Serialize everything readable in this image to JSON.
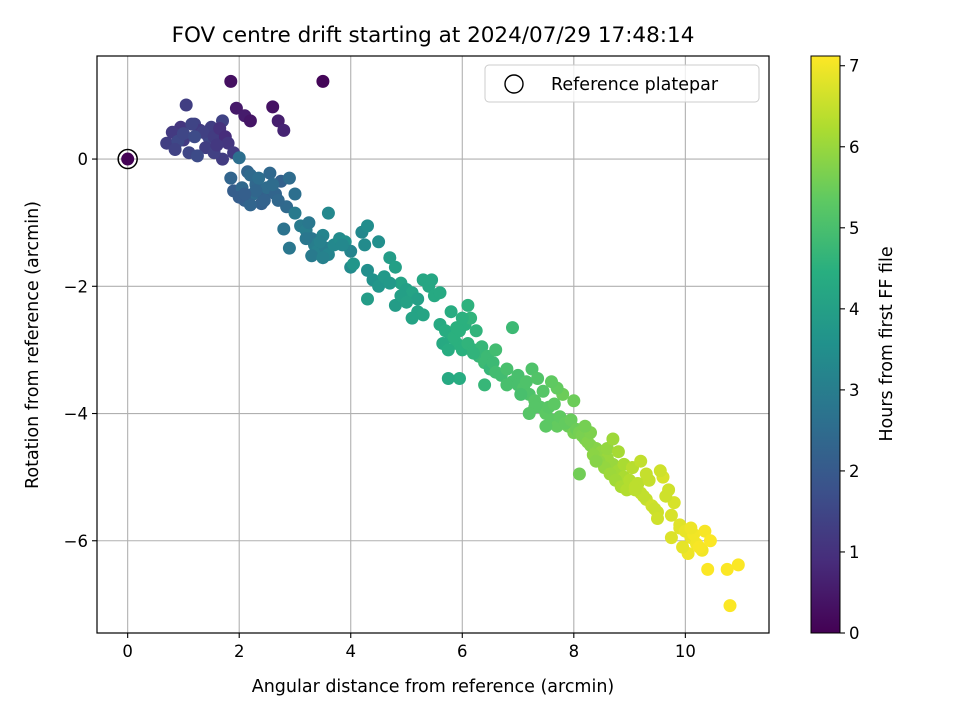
{
  "chart_data": {
    "type": "scatter",
    "title": "FOV centre drift starting at 2024/07/29 17:48:14",
    "xlabel": "Angular distance from reference (arcmin)",
    "ylabel": "Rotation from reference (arcmin)",
    "xlim": [
      -0.55,
      11.5
    ],
    "ylim": [
      -7.45,
      1.62
    ],
    "xticks": [
      0,
      2,
      4,
      6,
      8,
      10
    ],
    "yticks": [
      0,
      -2,
      -4,
      -6
    ],
    "grid": true,
    "legend": {
      "position": "top-right",
      "entries": [
        "Reference platepar"
      ]
    },
    "reference_point": {
      "x": 0,
      "y": 0,
      "hours": 0.05
    },
    "colorbar": {
      "label": "Hours from first FF file",
      "min": 0,
      "max": 7.12,
      "ticks": [
        0,
        1,
        2,
        3,
        4,
        5,
        6,
        7
      ],
      "colormap": "viridis"
    },
    "series": [
      {
        "x": [
          1.85,
          3.5,
          2.6,
          1.95,
          2.1,
          2.2,
          2.7,
          2.8,
          0.7,
          1.0,
          0.95,
          1.05,
          1.2,
          1.3,
          1.45,
          1.6,
          1.4,
          1.5,
          1.7,
          0.8,
          1.1,
          1.25,
          1.15,
          1.35,
          1.55,
          0.9,
          1.65,
          1.75,
          1.8,
          1.9,
          1.7,
          1.55,
          1.6,
          1.0,
          0.85,
          1.2,
          2.0,
          2.15,
          2.3,
          2.25,
          2.45,
          2.6,
          2.1,
          1.9,
          1.85,
          2.05,
          2.2,
          2.35,
          2.5,
          2.65,
          2.75,
          2.4,
          2.2,
          2.0,
          2.55,
          2.3,
          2.45,
          2.1,
          2.9,
          3.0,
          2.85,
          2.6,
          2.7,
          3.1,
          3.2,
          3.3,
          3.35,
          3.4,
          3.5,
          3.55,
          3.3,
          3.25,
          3.45,
          3.6,
          3.7,
          3.5,
          3.2,
          2.8,
          2.9,
          3.0,
          3.6,
          3.8,
          3.9,
          4.0,
          4.2,
          4.3,
          4.25,
          4.5,
          3.85,
          4.0,
          4.3,
          4.4,
          4.5,
          4.6,
          4.7,
          4.8,
          4.9,
          5.0,
          5.1,
          5.2,
          5.3,
          4.8,
          4.9,
          5.0,
          5.2,
          5.3,
          5.4,
          5.5,
          5.6,
          4.7,
          5.45,
          5.1,
          4.3,
          4.05,
          5.6,
          5.7,
          5.8,
          5.9,
          6.0,
          6.1,
          6.2,
          6.3,
          6.4,
          6.5,
          5.65,
          5.75,
          5.85,
          5.95,
          6.05,
          6.15,
          6.25,
          6.35,
          6.45,
          6.55,
          6.6,
          6.7,
          6.8,
          6.9,
          7.0,
          5.8,
          5.9,
          6.0,
          6.6,
          6.8,
          5.95,
          6.2,
          6.4,
          5.75,
          6.1,
          7.0,
          7.1,
          7.2,
          7.3,
          7.4,
          7.5,
          7.6,
          7.7,
          7.8,
          7.9,
          8.0,
          7.05,
          7.15,
          7.25,
          7.35,
          7.45,
          7.55,
          7.65,
          7.75,
          7.85,
          7.95,
          8.05,
          7.3,
          7.5,
          7.7,
          6.9,
          7.6,
          8.0,
          7.2,
          8.1,
          8.2,
          8.3,
          8.4,
          8.5,
          8.6,
          8.7,
          8.8,
          8.9,
          9.0,
          8.15,
          8.25,
          8.35,
          8.45,
          8.55,
          8.65,
          8.75,
          8.85,
          8.95,
          9.05,
          8.3,
          8.6,
          8.9,
          8.7,
          8.2,
          8.8,
          8.4,
          8.1,
          9.0,
          9.1,
          9.2,
          9.3,
          9.4,
          9.5,
          9.6,
          9.7,
          9.8,
          9.05,
          9.15,
          9.25,
          9.35,
          9.45,
          9.55,
          9.65,
          9.75,
          9.1,
          9.2,
          9.3,
          9.5,
          9.9,
          9.9,
          10.0,
          10.1,
          10.2,
          10.3,
          10.05,
          10.15,
          10.25,
          10.35,
          9.95,
          10.1,
          10.45,
          10.4,
          10.75,
          10.95,
          10.8,
          9.75
        ],
        "y": [
          1.22,
          1.22,
          0.82,
          0.8,
          0.68,
          0.6,
          0.6,
          0.45,
          0.25,
          0.3,
          0.5,
          0.85,
          0.55,
          0.45,
          0.35,
          0.25,
          0.18,
          0.5,
          0.6,
          0.42,
          0.1,
          0.05,
          0.55,
          0.42,
          0.35,
          0.28,
          0.48,
          0.35,
          0.25,
          0.1,
          0.0,
          0.1,
          0.22,
          0.4,
          0.15,
          0.35,
          0.02,
          -0.2,
          -0.4,
          -0.55,
          -0.6,
          -0.4,
          -0.65,
          -0.5,
          -0.3,
          -0.45,
          -0.25,
          -0.3,
          -0.45,
          -0.55,
          -0.35,
          -0.7,
          -0.72,
          -0.6,
          -0.22,
          -0.5,
          -0.65,
          -0.55,
          -0.3,
          -0.55,
          -0.75,
          -0.4,
          -0.65,
          -1.05,
          -1.12,
          -1.25,
          -1.35,
          -1.45,
          -1.2,
          -1.4,
          -1.52,
          -1.0,
          -1.3,
          -1.5,
          -1.35,
          -1.55,
          -1.25,
          -1.1,
          -1.4,
          -0.85,
          -0.85,
          -1.25,
          -1.3,
          -1.45,
          -1.15,
          -1.05,
          -1.35,
          -1.3,
          -1.35,
          -1.7,
          -1.75,
          -1.9,
          -2.0,
          -1.85,
          -1.55,
          -1.7,
          -1.95,
          -2.05,
          -2.1,
          -2.2,
          -1.9,
          -2.3,
          -2.15,
          -2.25,
          -2.4,
          -2.45,
          -2.0,
          -2.15,
          -2.1,
          -1.95,
          -1.9,
          -2.5,
          -2.2,
          -1.65,
          -2.6,
          -2.7,
          -2.8,
          -2.9,
          -3.0,
          -2.9,
          -3.0,
          -3.1,
          -3.2,
          -3.3,
          -2.9,
          -3.0,
          -2.8,
          -2.7,
          -2.6,
          -2.5,
          -2.7,
          -2.95,
          -3.1,
          -3.2,
          -3.35,
          -3.4,
          -3.3,
          -3.5,
          -3.4,
          -2.4,
          -2.65,
          -2.5,
          -3.0,
          -3.55,
          -3.45,
          -3.05,
          -3.55,
          -3.45,
          -2.3,
          -3.55,
          -3.6,
          -3.7,
          -3.8,
          -3.9,
          -4.0,
          -4.1,
          -4.2,
          -3.7,
          -4.2,
          -4.3,
          -3.7,
          -3.5,
          -3.3,
          -3.45,
          -3.65,
          -3.9,
          -3.85,
          -4.05,
          -4.15,
          -4.1,
          -4.25,
          -3.9,
          -4.2,
          -3.6,
          -2.65,
          -3.5,
          -3.8,
          -4.0,
          -4.3,
          -4.4,
          -4.5,
          -4.55,
          -4.6,
          -4.7,
          -4.8,
          -4.9,
          -5.0,
          -5.1,
          -4.35,
          -4.45,
          -4.65,
          -4.75,
          -4.85,
          -4.95,
          -5.05,
          -5.15,
          -5.2,
          -4.85,
          -4.3,
          -4.55,
          -4.8,
          -4.4,
          -4.2,
          -4.6,
          -4.75,
          -4.95,
          -5.05,
          -5.15,
          -5.25,
          -5.35,
          -5.45,
          -5.55,
          -5.0,
          -5.2,
          -5.4,
          -4.85,
          -5.1,
          -5.3,
          -5.05,
          -5.5,
          -4.9,
          -5.3,
          -5.6,
          -5.2,
          -4.75,
          -4.95,
          -5.65,
          -5.8,
          -5.75,
          -5.85,
          -5.95,
          -6.05,
          -6.15,
          -6.2,
          -5.9,
          -6.1,
          -5.85,
          -6.1,
          -5.8,
          -6.0,
          -6.45,
          -6.45,
          -6.38,
          -7.02,
          -5.95
        ],
        "hours": [
          0.3,
          0.1,
          0.35,
          0.5,
          0.55,
          0.4,
          0.6,
          0.7,
          1.3,
          1.2,
          1.1,
          1.3,
          1.4,
          1.2,
          1.5,
          1.4,
          1.3,
          1.3,
          1.4,
          1.2,
          1.5,
          1.6,
          1.45,
          1.35,
          1.25,
          1.55,
          1.0,
          0.9,
          1.1,
          1.2,
          1.25,
          1.35,
          1.15,
          1.5,
          1.4,
          1.6,
          2.6,
          2.3,
          2.4,
          2.5,
          2.2,
          2.35,
          2.2,
          2.1,
          2.3,
          2.4,
          2.45,
          2.55,
          2.5,
          2.3,
          2.2,
          2.2,
          2.3,
          2.1,
          2.4,
          2.35,
          2.25,
          2.15,
          2.5,
          2.6,
          2.45,
          2.5,
          2.4,
          2.9,
          3.0,
          2.8,
          3.0,
          3.1,
          3.2,
          3.0,
          2.9,
          2.8,
          3.1,
          3.2,
          3.3,
          3.1,
          2.8,
          2.7,
          2.8,
          2.9,
          3.3,
          3.4,
          3.5,
          3.2,
          3.3,
          3.45,
          3.4,
          3.5,
          3.3,
          3.4,
          3.5,
          3.6,
          3.7,
          3.8,
          3.9,
          4.0,
          4.1,
          4.0,
          4.1,
          4.0,
          4.2,
          3.9,
          4.0,
          4.05,
          4.1,
          4.15,
          4.2,
          4.3,
          4.3,
          3.8,
          4.2,
          4.1,
          3.9,
          3.7,
          4.3,
          4.4,
          4.4,
          4.5,
          4.5,
          4.6,
          4.6,
          4.7,
          4.8,
          4.7,
          4.3,
          4.4,
          4.5,
          4.5,
          4.5,
          4.6,
          4.6,
          4.7,
          4.8,
          4.8,
          4.9,
          4.9,
          5.0,
          5.0,
          5.0,
          4.4,
          4.5,
          4.5,
          4.9,
          5.0,
          4.4,
          4.6,
          4.7,
          4.3,
          4.55,
          5.0,
          5.1,
          5.1,
          5.2,
          5.2,
          5.3,
          5.3,
          5.4,
          5.5,
          5.5,
          5.6,
          5.0,
          5.1,
          5.1,
          5.15,
          5.2,
          5.25,
          5.3,
          5.35,
          5.4,
          5.45,
          5.5,
          5.2,
          5.3,
          5.4,
          4.8,
          5.35,
          5.5,
          5.2,
          5.6,
          5.7,
          5.7,
          5.8,
          5.9,
          6.0,
          6.0,
          6.1,
          6.2,
          6.3,
          5.65,
          5.75,
          5.85,
          5.9,
          5.95,
          6.05,
          6.1,
          6.2,
          6.3,
          6.35,
          5.7,
          5.95,
          6.2,
          6.05,
          5.6,
          6.15,
          5.8,
          5.55,
          6.3,
          6.4,
          6.5,
          6.5,
          6.6,
          6.6,
          6.7,
          6.6,
          6.7,
          6.35,
          6.4,
          6.45,
          6.5,
          6.55,
          6.6,
          6.6,
          6.7,
          6.4,
          6.45,
          6.5,
          6.6,
          6.8,
          6.8,
          6.9,
          6.9,
          7.0,
          7.0,
          6.95,
          7.0,
          7.05,
          7.05,
          6.85,
          6.95,
          7.1,
          7.1,
          7.1,
          7.1,
          7.1,
          6.75
        ]
      }
    ]
  }
}
